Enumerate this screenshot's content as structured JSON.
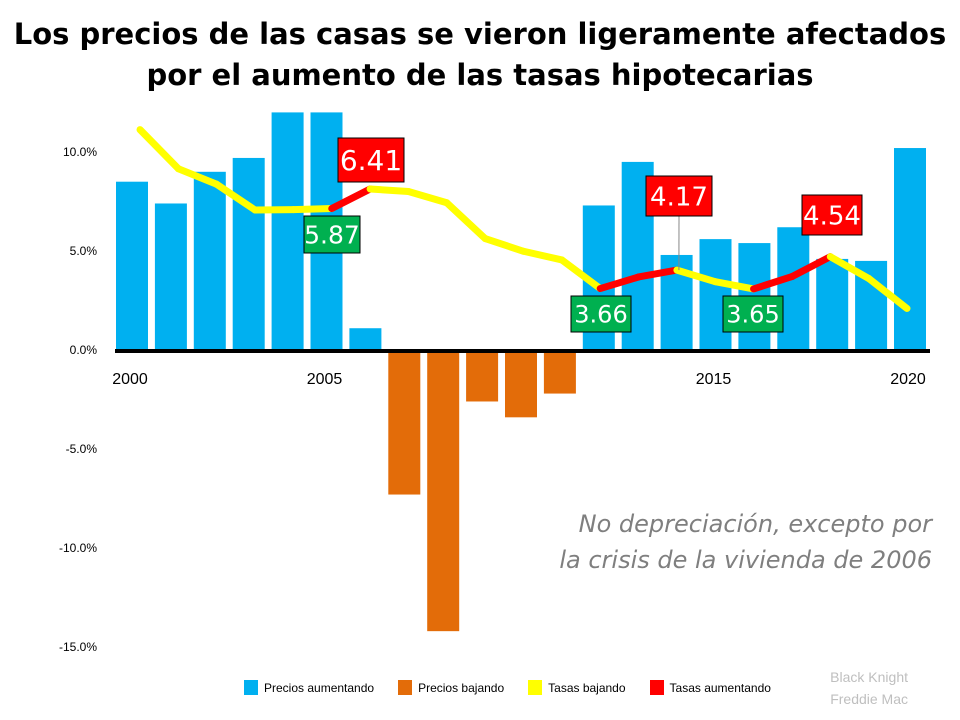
{
  "chart_data": {
    "type": "bar+line",
    "title": "Los precios de las casas se vieron ligeramente afectados por el aumento de las tasas hipotecarias",
    "title_lines": [
      "Los precios de las casas se vieron ligeramente afectados",
      "por el aumento de las tasas hipotecarias"
    ],
    "years": [
      2000,
      2001,
      2002,
      2003,
      2004,
      2005,
      2006,
      2007,
      2008,
      2009,
      2010,
      2011,
      2012,
      2013,
      2014,
      2015,
      2016,
      2017,
      2018,
      2019,
      2020
    ],
    "x_tick_labels": [
      "2000",
      "2005",
      "2015",
      "2020"
    ],
    "y_tick_labels": [
      "10.0%",
      "5.0%",
      "0.0%",
      "-5.0%",
      "-10.0%",
      "-15.0%"
    ],
    "ylim": [
      -15,
      12
    ],
    "price_change_pct": [
      8.5,
      7.4,
      9.0,
      9.7,
      12.0,
      12.0,
      1.1,
      -7.3,
      -14.2,
      -2.6,
      -3.4,
      -2.2,
      7.3,
      9.5,
      4.8,
      5.6,
      5.4,
      6.2,
      4.6,
      4.5,
      10.2
    ],
    "mortgage_rate": [
      8.05,
      6.97,
      6.54,
      5.83,
      5.84,
      5.87,
      6.41,
      6.34,
      6.03,
      5.04,
      4.69,
      4.45,
      3.66,
      3.98,
      4.17,
      3.85,
      3.65,
      3.99,
      4.54,
      3.94,
      3.11
    ],
    "rate_rising_segments": [
      [
        2005,
        2006
      ],
      [
        2012,
        2014
      ],
      [
        2016,
        2018
      ]
    ],
    "callouts": [
      {
        "year": 2006,
        "label": "6.41",
        "kind": "up"
      },
      {
        "year": 2005,
        "label": "5.87",
        "kind": "down"
      },
      {
        "year": 2014,
        "label": "4.17",
        "kind": "up"
      },
      {
        "year": 2012,
        "label": "3.66",
        "kind": "down"
      },
      {
        "year": 2016,
        "label": "3.65",
        "kind": "down"
      },
      {
        "year": 2018,
        "label": "4.54",
        "kind": "up"
      }
    ],
    "legend": [
      "Precios aumentando",
      "Precios bajando",
      "Tasas bajando",
      "Tasas aumentando"
    ],
    "legend_position": "bottom",
    "grid": false,
    "colors": {
      "price_up": "#00b0f0",
      "price_down": "#e36c09",
      "rate_down": "#ffff00",
      "rate_up": "#ff0000",
      "callout_up": "#ff0000",
      "callout_down": "#00b050"
    }
  },
  "annotation": [
    "No depreciación,  excepto por",
    "la crisis de la vivienda de 2006"
  ],
  "source": [
    "Black Knight",
    "Freddie Mac"
  ]
}
